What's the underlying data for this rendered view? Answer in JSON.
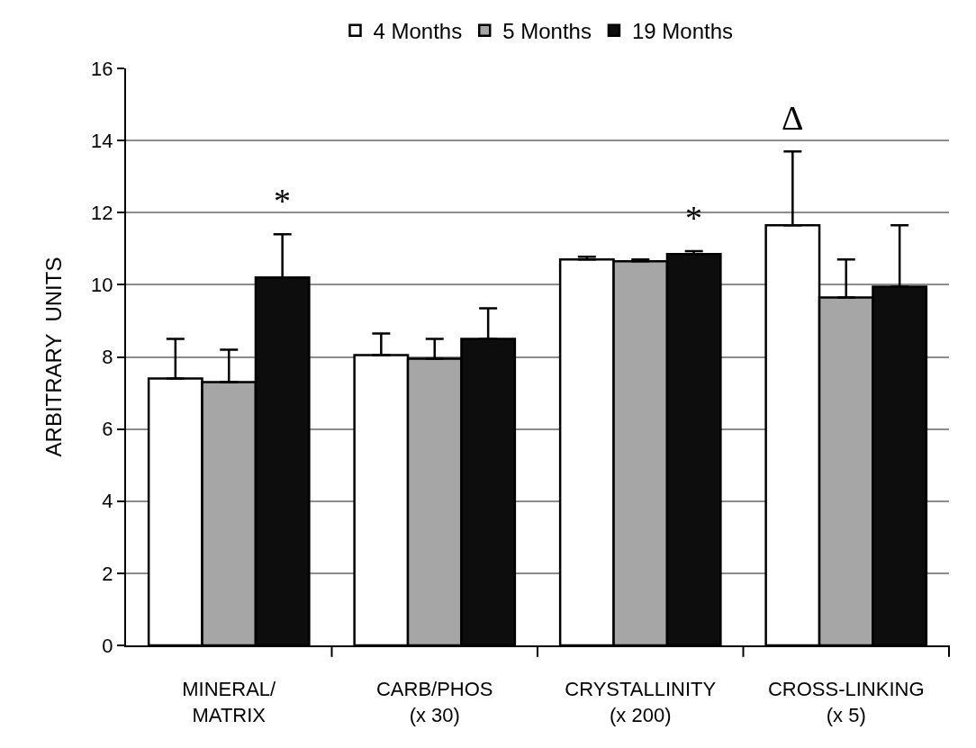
{
  "chart_data": {
    "type": "bar",
    "ylabel": "ARBITRARY  UNITS",
    "categories": [
      "MINERAL/\nMATRIX",
      "CARB/PHOS\n(x 30)",
      "CRYSTALLINITY\n(x 200)",
      "CROSS-LINKING\n(x 5)"
    ],
    "series": [
      {
        "name": "4 Months",
        "color": "#ffffff",
        "values": [
          7.4,
          8.05,
          10.7,
          11.65
        ],
        "errors": [
          [
            7.4,
            8.5
          ],
          [
            8.05,
            8.65
          ],
          [
            10.7,
            10.78
          ],
          [
            11.65,
            13.7
          ]
        ]
      },
      {
        "name": "5 Months",
        "color": "#a6a6a6",
        "values": [
          7.3,
          7.95,
          10.65,
          9.65
        ],
        "errors": [
          [
            7.3,
            8.2
          ],
          [
            7.95,
            8.5
          ],
          [
            10.65,
            10.7
          ],
          [
            9.65,
            10.7
          ]
        ]
      },
      {
        "name": "19 Months",
        "color": "#0d0d0d",
        "values": [
          10.2,
          8.5,
          10.85,
          9.95
        ],
        "errors": [
          [
            10.2,
            11.4
          ],
          [
            8.5,
            9.35
          ],
          [
            10.85,
            10.93
          ],
          [
            9.95,
            11.65
          ]
        ]
      }
    ],
    "ylim": [
      0,
      16
    ],
    "yticks": [
      0,
      2,
      4,
      6,
      8,
      10,
      12,
      14,
      16
    ],
    "grid": "y",
    "legend": "top",
    "annotations": [
      "*",
      "*",
      "Δ"
    ]
  }
}
